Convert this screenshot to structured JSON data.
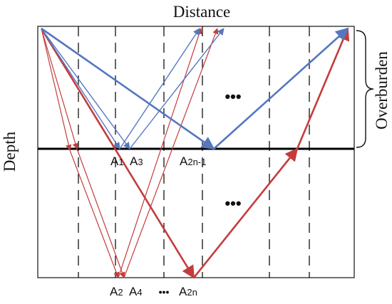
{
  "axis_labels": {
    "top": "Distance",
    "left": "Depth",
    "right": "Overburden"
  },
  "point_labels": {
    "a1": {
      "main": "A",
      "sub": "1"
    },
    "a3": {
      "main": "A",
      "sub": "3"
    },
    "a2n_1": {
      "main": "A",
      "sub": "2n-1"
    },
    "a2": {
      "main": "A",
      "sub": "2"
    },
    "a4": {
      "main": "A",
      "sub": "4"
    },
    "a2n": {
      "main": "A",
      "sub": "2n"
    }
  },
  "ellipsis": "•••",
  "colors": {
    "blue_ray": "#5577c0",
    "red_ray": "#c43c3c",
    "frame": "#111111",
    "interface": "#000000"
  }
}
